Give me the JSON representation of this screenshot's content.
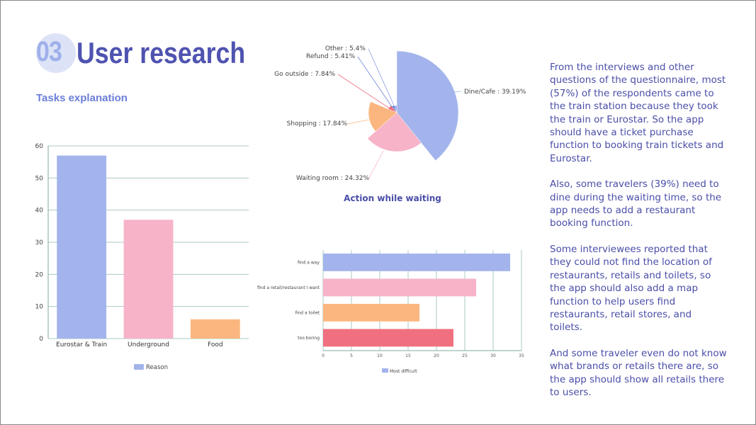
{
  "header": {
    "number": "03",
    "title": "User research",
    "subtitle": "Tasks explanation"
  },
  "paragraphs": [
    "From the interviews and other questions of the questionnaire, most (57%) of the respondents came to the train station because they took the train or Eurostar. So the app should have a ticket purchase function to booking train tickets and Eurostar.",
    "Also, some travelers (39%) need to dine during the waiting time, so the app needs to add a restaurant booking function.",
    "Some interviewees reported that they could not find the location of restaurants, retails and toilets, so the app should also add a map function to help users find restaurants, retail stores, and toilets.",
    "And some traveler even do not know what brands or retails there are, so the app should show all retails there to users."
  ],
  "chart_data": [
    {
      "type": "bar",
      "title": "",
      "categories": [
        "Eurostar & Train",
        "Underground",
        "Food"
      ],
      "values": [
        57,
        37,
        6
      ],
      "colors": [
        "#a3b4ec",
        "#f7b3c8",
        "#fbb67f"
      ],
      "ylim": [
        0,
        60
      ],
      "yticks": [
        "0",
        "10",
        "20",
        "30",
        "40",
        "50",
        "60"
      ],
      "legend": "Reason",
      "legend_position": "bottom"
    },
    {
      "type": "pie",
      "variant": "rose",
      "title": "Action while waiting",
      "labels": [
        "Dine/Cafe : 39.19%",
        "Waiting room : 24.32%",
        "Shopping : 17.84%",
        "Go outside : 7.84%",
        "Refund : 5.41%",
        "Other : 5.4%"
      ],
      "values": [
        39.19,
        24.32,
        17.84,
        7.84,
        5.41,
        5.4
      ],
      "colors": [
        "#a3b4ec",
        "#f7b3c8",
        "#fbb67f",
        "#ee6e7c",
        "#6b7fd9",
        "#8a9be3"
      ]
    },
    {
      "type": "bar",
      "orientation": "horizontal",
      "categories": [
        "find a way",
        "find a retail/restaurant I want",
        "find a toilet",
        "too boring"
      ],
      "values": [
        33,
        27,
        17,
        23
      ],
      "colors": [
        "#a3b4ec",
        "#f7b3c8",
        "#fbb67f",
        "#f07080"
      ],
      "xlim": [
        0,
        35
      ],
      "xticks": [
        "0",
        "5",
        "10",
        "15",
        "20",
        "25",
        "30",
        "35"
      ],
      "legend": "Most difficult",
      "legend_position": "bottom"
    }
  ]
}
